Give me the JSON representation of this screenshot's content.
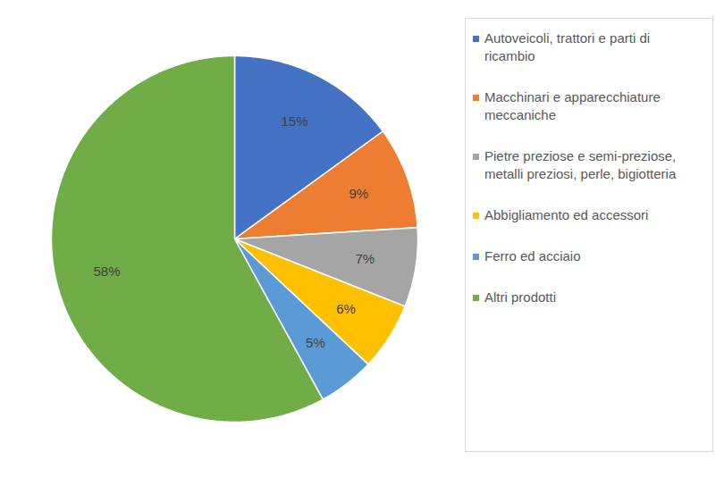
{
  "chart_data": {
    "type": "pie",
    "categories": [
      "Autoveicoli, trattori e parti di ricambio",
      "Macchinari e apparecchiature meccaniche",
      "Pietre preziose e semi-preziose, metalli preziosi, perle, bigiotteria",
      "Abbigliamento ed accessori",
      "Ferro ed acciaio",
      "Altri prodotti"
    ],
    "values": [
      15,
      9,
      7,
      6,
      5,
      58
    ],
    "value_labels": [
      "15%",
      "9%",
      "7%",
      "6%",
      "5%",
      "58%"
    ],
    "colors": [
      "#4472c4",
      "#ed7d31",
      "#a5a5a5",
      "#ffc000",
      "#5b9bd5",
      "#70ad47"
    ],
    "data_labels": true,
    "legend": "right"
  }
}
